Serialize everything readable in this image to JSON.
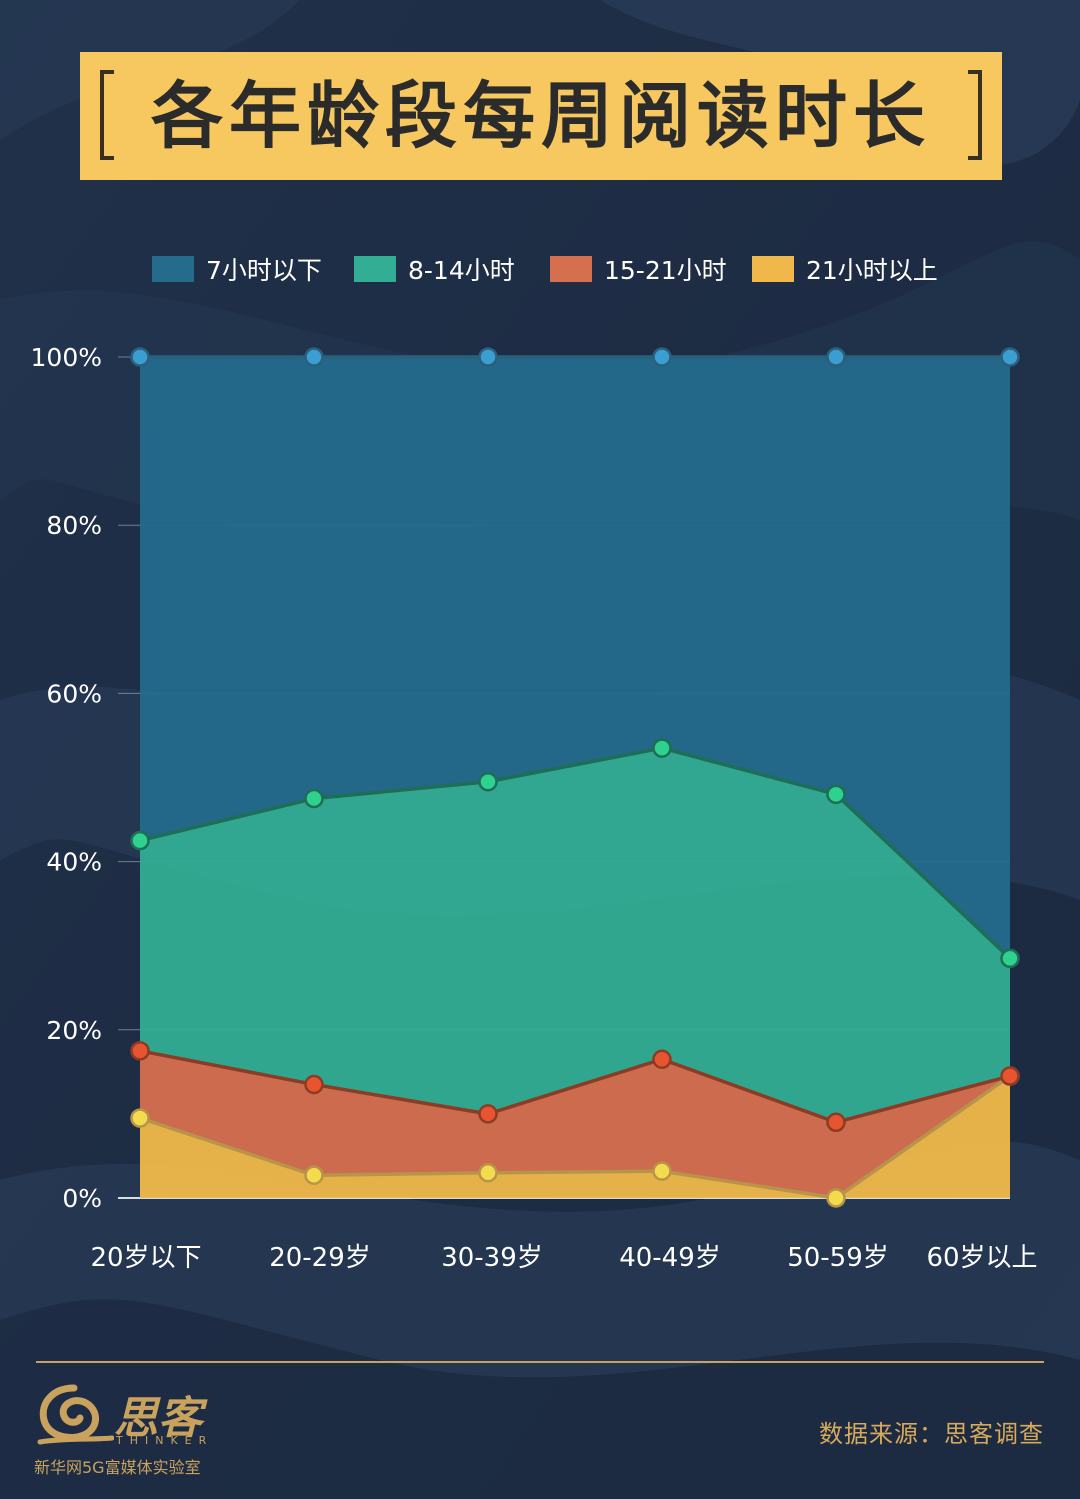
{
  "title": "各年龄段每周阅读时长",
  "chart_data": {
    "type": "area",
    "stacked": true,
    "categories": [
      "20岁以下",
      "20-29岁",
      "30-39岁",
      "40-49岁",
      "50-59岁",
      "60岁以上"
    ],
    "series": [
      {
        "name": "7小时以下",
        "color": "#246b8c",
        "marker": "#3a9fd0",
        "values": [
          57.5,
          52.5,
          50.5,
          46.5,
          52,
          71.5
        ]
      },
      {
        "name": "8-14小时",
        "color": "#33ad93",
        "marker": "#2fd18e",
        "values": [
          25,
          34,
          39.5,
          37,
          39,
          14
        ]
      },
      {
        "name": "15-21小时",
        "color": "#d66f4e",
        "marker": "#e65530",
        "values": [
          8,
          10.8,
          7,
          13.3,
          9,
          0
        ]
      },
      {
        "name": "21小时以上",
        "color": "#f0b84a",
        "marker": "#f2dc4e",
        "values": [
          9.5,
          2.7,
          3,
          3.2,
          0,
          14.5
        ]
      }
    ],
    "ylim": [
      0,
      100
    ],
    "yticks": [
      "0%",
      "20%",
      "40%",
      "60%",
      "80%",
      "100%"
    ],
    "legend_position": "top",
    "grid": true
  },
  "footer": {
    "source": "数据来源：思客调查",
    "logo_name": "思客",
    "logo_sub": "THINKER",
    "logo_org": "新华网5G富媒体实验室"
  }
}
